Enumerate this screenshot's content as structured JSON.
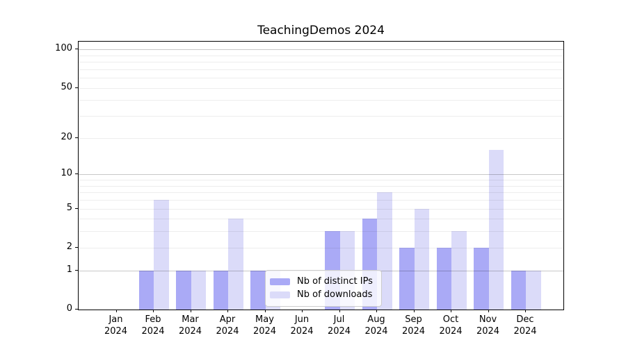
{
  "figure": {
    "background": "#ffffff",
    "spine_color": "#000000"
  },
  "chart_data": {
    "type": "bar",
    "title": "TeachingDemos 2024",
    "categories": [
      "Jan 2024",
      "Feb 2024",
      "Mar 2024",
      "Apr 2024",
      "May 2024",
      "Jun 2024",
      "Jul 2024",
      "Aug 2024",
      "Sep 2024",
      "Oct 2024",
      "Nov 2024",
      "Dec 2024"
    ],
    "series": [
      {
        "key": "distinct-ips",
        "name": "Nb of distinct IPs",
        "color": "#aaaaf6",
        "values": [
          0,
          1,
          1,
          1,
          1,
          0,
          3,
          4,
          2,
          2,
          2,
          1
        ]
      },
      {
        "key": "downloads",
        "name": "Nb of downloads",
        "color": "#dbdbf9",
        "values": [
          0,
          6,
          1,
          4,
          1,
          0,
          3,
          7,
          5,
          3,
          16,
          1
        ]
      }
    ],
    "yscale": "log1p",
    "ylim": [
      0,
      115
    ],
    "yticks": [
      0,
      1,
      2,
      5,
      10,
      20,
      50,
      100
    ],
    "major_gridlines": [
      1,
      10,
      100
    ],
    "minor_gridlines": [
      2,
      3,
      4,
      5,
      6,
      7,
      8,
      9,
      20,
      30,
      40,
      50,
      60,
      70,
      80,
      90
    ],
    "grid": true,
    "legend_position": "lower-center-inside",
    "xlabel": "",
    "ylabel": ""
  }
}
